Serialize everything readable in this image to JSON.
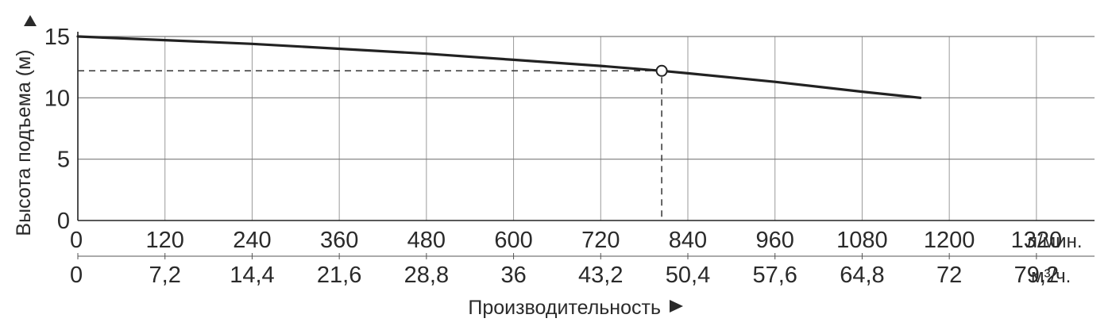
{
  "chart_data": {
    "type": "line",
    "title": "",
    "ylabel": "Высота подъема (м)",
    "xlabel": "Производительность",
    "grid": true,
    "xlim": [
      0,
      1400
    ],
    "ylim": [
      0,
      15
    ],
    "y_ticks": [
      "0",
      "5",
      "10",
      "15"
    ],
    "x_ticks_primary": [
      "0",
      "120",
      "240",
      "360",
      "480",
      "600",
      "720",
      "840",
      "960",
      "1080",
      "1200",
      "1320"
    ],
    "x_unit_primary": "л/мин.",
    "x_ticks_secondary": [
      "0",
      "7,2",
      "14,4",
      "21,6",
      "28,8",
      "36",
      "43,2",
      "50,4",
      "57,6",
      "64,8",
      "72",
      "79,2"
    ],
    "x_unit_secondary": "м³/ч.",
    "series": [
      {
        "color": "#222222",
        "points": [
          {
            "x": 0,
            "y": 15.0
          },
          {
            "x": 120,
            "y": 14.7
          },
          {
            "x": 240,
            "y": 14.4
          },
          {
            "x": 360,
            "y": 14.0
          },
          {
            "x": 480,
            "y": 13.6
          },
          {
            "x": 600,
            "y": 13.1
          },
          {
            "x": 720,
            "y": 12.6
          },
          {
            "x": 804,
            "y": 12.2
          },
          {
            "x": 840,
            "y": 12.0
          },
          {
            "x": 960,
            "y": 11.3
          },
          {
            "x": 1080,
            "y": 10.5
          },
          {
            "x": 1160,
            "y": 10.0
          }
        ]
      }
    ],
    "operating_point": {
      "x": 804,
      "y": 12.2
    }
  }
}
